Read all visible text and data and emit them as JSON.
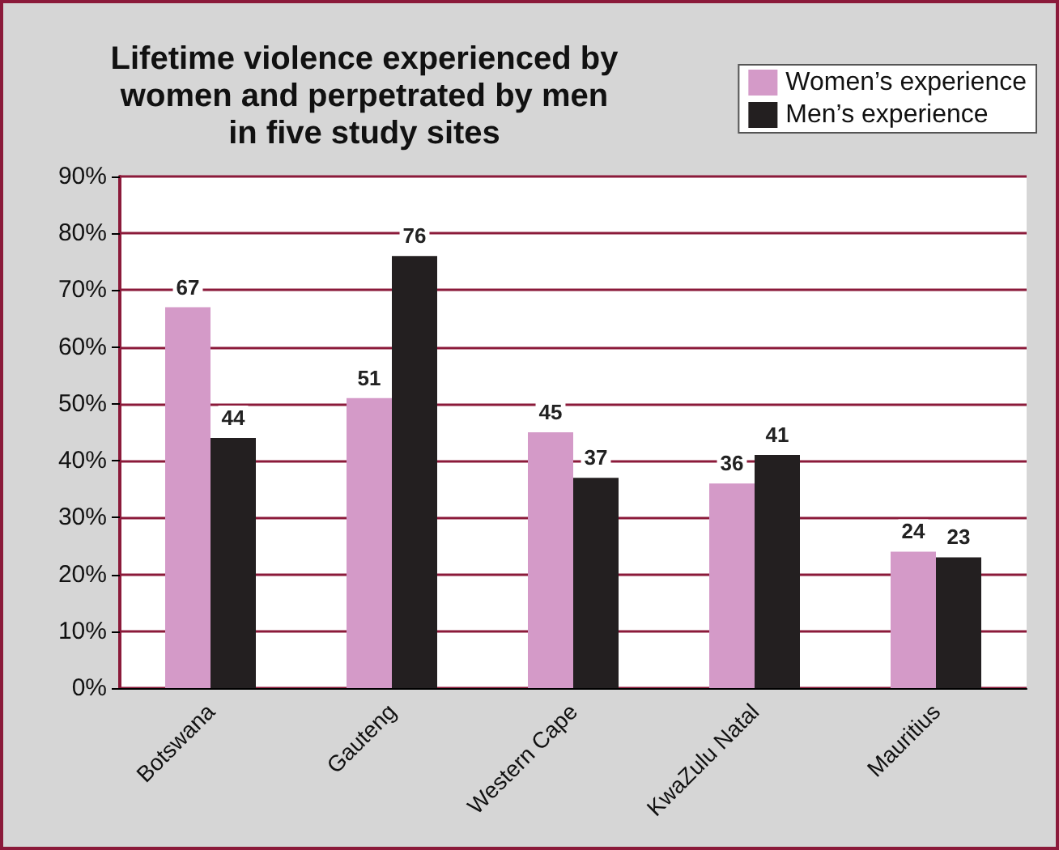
{
  "chart_data": {
    "type": "bar",
    "title": "Lifetime violence experienced by\nwomen and perpetrated by men\nin five study sites",
    "categories": [
      "Botswana",
      "Gauteng",
      "Western Cape",
      "KwaZulu Natal",
      "Mauritius"
    ],
    "series": [
      {
        "name": "Women’s experience",
        "color": "#d49ac8",
        "values": [
          67,
          51,
          45,
          36,
          24
        ]
      },
      {
        "name": "Men’s experience",
        "color": "#231f20",
        "values": [
          44,
          76,
          37,
          41,
          23
        ]
      }
    ],
    "ylim": [
      0,
      90
    ],
    "yticks": [
      {
        "value": 0,
        "label": "0%"
      },
      {
        "value": 10,
        "label": "10%"
      },
      {
        "value": 20,
        "label": "20%"
      },
      {
        "value": 30,
        "label": "30%"
      },
      {
        "value": 40,
        "label": "40%"
      },
      {
        "value": 50,
        "label": "50%"
      },
      {
        "value": 60,
        "label": "60%"
      },
      {
        "value": 70,
        "label": "70%"
      },
      {
        "value": 80,
        "label": "80%"
      },
      {
        "value": 90,
        "label": "90%"
      }
    ],
    "grid": "y",
    "legend": "top right",
    "data_labels": true
  }
}
